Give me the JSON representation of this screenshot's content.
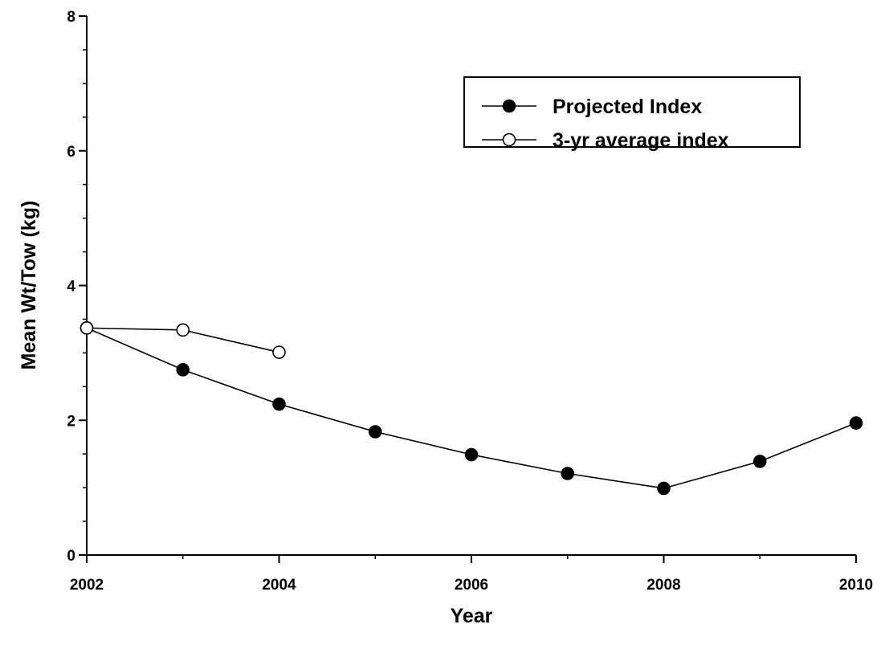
{
  "chart_data": {
    "type": "line",
    "title": "",
    "xlabel": "Year",
    "ylabel": "Mean Wt/Tow (kg)",
    "xlim": [
      2002,
      2010
    ],
    "ylim": [
      0,
      8
    ],
    "x_ticks": [
      2002,
      2004,
      2006,
      2008,
      2010
    ],
    "y_ticks": [
      0,
      2,
      4,
      6,
      8
    ],
    "grid": false,
    "legend_position": "top-right",
    "series": [
      {
        "name": "Projected Index",
        "marker": "filled-circle",
        "color": "#000000",
        "x": [
          2002,
          2003,
          2004,
          2005,
          2006,
          2007,
          2008,
          2009,
          2010
        ],
        "y": [
          3.37,
          2.75,
          2.24,
          1.83,
          1.49,
          1.21,
          0.99,
          1.39,
          1.96
        ]
      },
      {
        "name": "3-yr average index",
        "marker": "open-circle",
        "color": "#000000",
        "x": [
          2002,
          2003,
          2004
        ],
        "y": [
          3.37,
          3.34,
          3.01
        ]
      }
    ]
  }
}
